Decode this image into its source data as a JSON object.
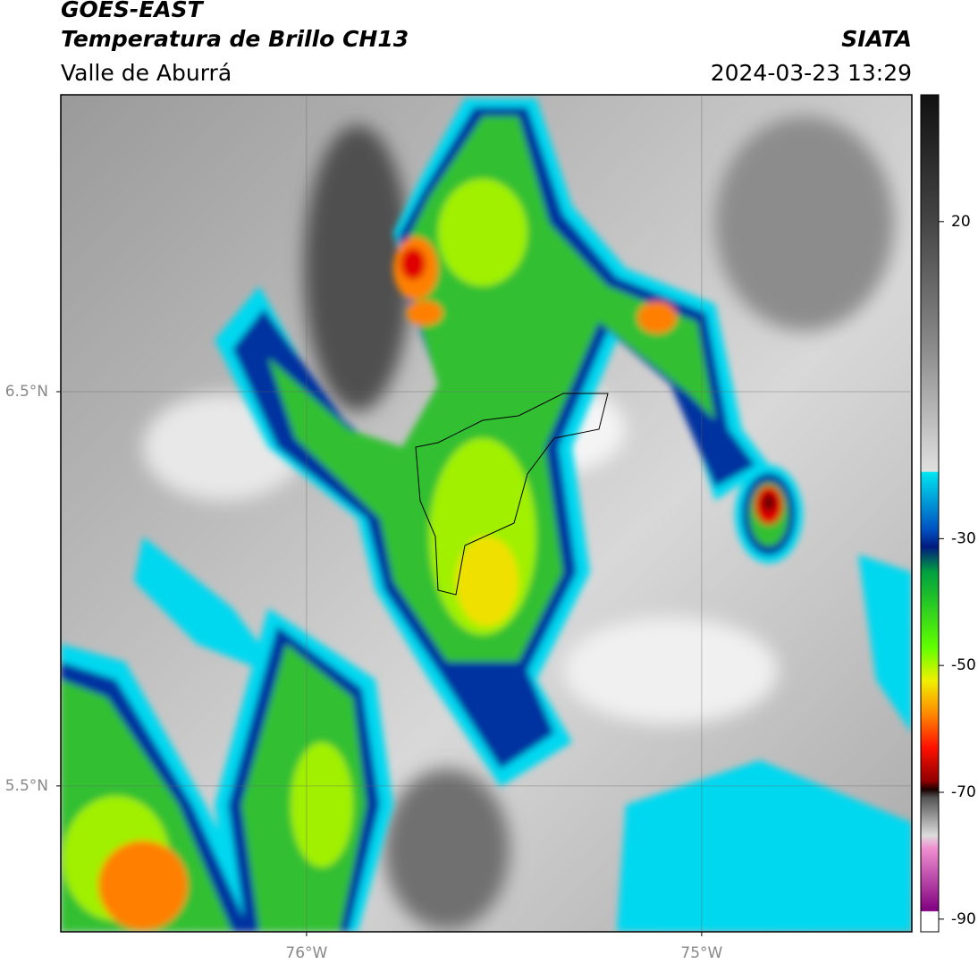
{
  "header": {
    "title": "GOES-EAST",
    "subtitle": "Temperatura de Brillo CH13",
    "region": "Valle de Aburrá",
    "source": "SIATA",
    "datetime": "2024-03-23 13:29"
  },
  "map": {
    "xlim": [
      -76.622,
      -74.468
    ],
    "ylim": [
      5.13,
      7.253
    ],
    "xticks": [
      {
        "value": -76,
        "label": "76°W"
      },
      {
        "value": -75,
        "label": "75°W"
      }
    ],
    "yticks": [
      {
        "value": 6.5,
        "label": "6.5°N"
      },
      {
        "value": 5.5,
        "label": "5.5°N"
      }
    ],
    "grid": true
  },
  "colorbar": {
    "lim": [
      -92,
      40
    ],
    "ticks": [
      20,
      -30,
      -50,
      -70,
      -90
    ]
  }
}
